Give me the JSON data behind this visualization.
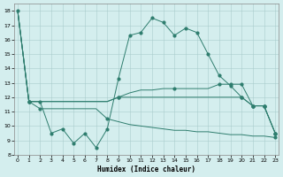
{
  "xlabel": "Humidex (Indice chaleur)",
  "background_color": "#d4eeee",
  "grid_color": "#aacccc",
  "line_color": "#2e7d6e",
  "xlim": [
    -0.3,
    23.3
  ],
  "ylim": [
    8,
    18.5
  ],
  "yticks": [
    8,
    9,
    10,
    11,
    12,
    13,
    14,
    15,
    16,
    17,
    18
  ],
  "xticks": [
    0,
    1,
    2,
    3,
    4,
    5,
    6,
    7,
    8,
    9,
    10,
    11,
    12,
    13,
    14,
    15,
    16,
    17,
    18,
    19,
    20,
    21,
    22,
    23
  ],
  "line_main": {
    "x": [
      0,
      1,
      2,
      3,
      4,
      5,
      6,
      7,
      8,
      9,
      10,
      11,
      12,
      13,
      14,
      15,
      16,
      17,
      18,
      19,
      20,
      21,
      22,
      23
    ],
    "y": [
      18,
      11.7,
      11.7,
      9.5,
      9.8,
      8.8,
      9.5,
      8.5,
      9.8,
      13.3,
      16.3,
      16.5,
      17.5,
      17.2,
      16.3,
      16.8,
      16.5,
      15.0,
      13.5,
      12.8,
      12.0,
      11.4,
      11.4,
      9.5
    ]
  },
  "line_upper_diag": {
    "x": [
      0,
      1,
      2,
      3,
      4,
      5,
      6,
      7,
      8,
      9,
      10,
      11,
      12,
      13,
      14,
      15,
      16,
      17,
      18,
      19,
      20,
      21,
      22,
      23
    ],
    "y": [
      18,
      11.7,
      11.7,
      11.7,
      11.7,
      11.7,
      11.7,
      11.7,
      11.7,
      12.0,
      12.3,
      12.5,
      12.5,
      12.6,
      12.6,
      12.6,
      12.6,
      12.6,
      12.9,
      12.9,
      12.9,
      11.4,
      11.4,
      9.5
    ]
  },
  "line_mid_flat": {
    "x": [
      0,
      1,
      2,
      3,
      4,
      5,
      6,
      7,
      8,
      9,
      10,
      11,
      12,
      13,
      14,
      15,
      16,
      17,
      18,
      19,
      20,
      21,
      22,
      23
    ],
    "y": [
      18,
      11.7,
      11.7,
      11.7,
      11.7,
      11.7,
      11.7,
      11.7,
      11.7,
      12.0,
      12.0,
      12.0,
      12.0,
      12.0,
      12.0,
      12.0,
      12.0,
      12.0,
      12.0,
      12.0,
      12.0,
      11.4,
      11.4,
      9.5
    ]
  },
  "line_lower": {
    "x": [
      0,
      1,
      2,
      3,
      4,
      5,
      6,
      7,
      8,
      9,
      10,
      11,
      12,
      13,
      14,
      15,
      16,
      17,
      18,
      19,
      20,
      21,
      22,
      23
    ],
    "y": [
      18,
      11.7,
      11.2,
      11.2,
      11.2,
      11.2,
      11.2,
      11.2,
      10.5,
      10.3,
      10.1,
      10.0,
      9.9,
      9.8,
      9.7,
      9.7,
      9.6,
      9.6,
      9.5,
      9.4,
      9.4,
      9.3,
      9.3,
      9.2
    ]
  },
  "markers_main": [
    [
      0,
      18
    ],
    [
      2,
      11.7
    ],
    [
      3,
      9.5
    ],
    [
      4,
      9.8
    ],
    [
      5,
      8.8
    ],
    [
      6,
      9.5
    ],
    [
      7,
      8.5
    ],
    [
      8,
      9.8
    ],
    [
      9,
      13.3
    ],
    [
      10,
      16.3
    ],
    [
      11,
      16.5
    ],
    [
      12,
      17.5
    ],
    [
      13,
      17.2
    ],
    [
      14,
      16.3
    ],
    [
      15,
      16.8
    ],
    [
      16,
      16.5
    ],
    [
      17,
      15.0
    ],
    [
      18,
      13.5
    ],
    [
      19,
      12.8
    ],
    [
      20,
      12.0
    ],
    [
      21,
      11.4
    ],
    [
      22,
      11.4
    ],
    [
      23,
      9.5
    ]
  ],
  "markers_upper": [
    [
      1,
      11.7
    ],
    [
      9,
      12.0
    ],
    [
      14,
      12.6
    ],
    [
      18,
      12.9
    ],
    [
      19,
      12.9
    ],
    [
      20,
      12.9
    ],
    [
      21,
      11.4
    ],
    [
      22,
      11.4
    ],
    [
      23,
      9.5
    ]
  ],
  "markers_mid": [
    [
      1,
      11.7
    ],
    [
      9,
      12.0
    ],
    [
      20,
      12.0
    ],
    [
      21,
      11.4
    ],
    [
      22,
      11.4
    ],
    [
      23,
      9.5
    ]
  ],
  "markers_lower": [
    [
      1,
      11.7
    ],
    [
      2,
      11.2
    ],
    [
      8,
      10.5
    ],
    [
      23,
      9.2
    ]
  ]
}
